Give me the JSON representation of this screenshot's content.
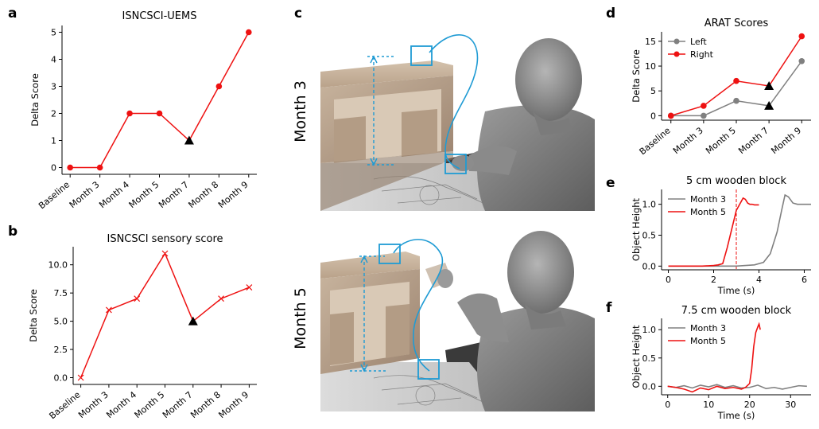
{
  "panels": [
    {
      "letter": "a"
    },
    {
      "letter": "b"
    },
    {
      "letter": "c"
    },
    {
      "letter": "d"
    },
    {
      "letter": "e"
    },
    {
      "letter": "f"
    }
  ],
  "colors": {
    "red": "#ee1111",
    "gray": "#808080",
    "black": "#000000",
    "blue": "#1f9bd4"
  },
  "photo_labels": {
    "top": "Month 3",
    "bottom": "Month 5"
  },
  "chart_data": [
    {
      "id": "a",
      "type": "line",
      "title": "ISNCSCI-UEMS",
      "xlabel": "",
      "ylabel": "Delta Score",
      "categories": [
        "Baseline",
        "Month 3",
        "Month 4",
        "Month 5",
        "Month 7",
        "Month 8",
        "Month 9"
      ],
      "yticks": [
        0,
        1,
        2,
        3,
        4,
        5
      ],
      "ylim": [
        -0.25,
        5.25
      ],
      "marker": "circle",
      "series": [
        {
          "values": [
            0,
            0,
            2,
            2,
            1,
            3,
            5
          ]
        }
      ],
      "highlight": {
        "index": 4,
        "marker": "triangle"
      }
    },
    {
      "id": "b",
      "type": "line",
      "title": "ISNCSCI sensory score",
      "xlabel": "",
      "ylabel": "Delta Score",
      "categories": [
        "Baseline",
        "Month 3",
        "Month 4",
        "Month 5",
        "Month 7",
        "Month 8",
        "Month 9"
      ],
      "yticks": [
        0.0,
        2.5,
        5.0,
        7.5,
        10.0
      ],
      "ytick_labels": [
        "0.0",
        "2.5",
        "5.0",
        "7.5",
        "10.0"
      ],
      "ylim": [
        -0.6,
        11.6
      ],
      "marker": "x",
      "series": [
        {
          "values": [
            0,
            6,
            7,
            11,
            5,
            7,
            8
          ]
        }
      ],
      "highlight": {
        "index": 4,
        "marker": "triangle"
      }
    },
    {
      "id": "d",
      "type": "line",
      "title": "ARAT Scores",
      "xlabel": "",
      "ylabel": "Delta Score",
      "categories": [
        "Baseline",
        "Month 3",
        "Month 5",
        "Month 7",
        "Month 9"
      ],
      "yticks": [
        0,
        5,
        10,
        15
      ],
      "ylim": [
        -0.9,
        16.9
      ],
      "legend": "top-left",
      "series": [
        {
          "name": "Left",
          "color": "gray",
          "values": [
            0,
            0,
            3,
            2,
            11
          ]
        },
        {
          "name": "Right",
          "color": "red",
          "values": [
            0,
            2,
            7,
            6,
            16
          ]
        }
      ],
      "highlight": {
        "index": 3,
        "marker": "triangle"
      }
    },
    {
      "id": "e",
      "type": "line",
      "title": "5 cm wooden block",
      "xlabel": "Time (s)",
      "ylabel": "Object Height",
      "xlim": [
        -0.3,
        6.3
      ],
      "ylim": [
        -0.06,
        1.24
      ],
      "xticks": [
        0,
        2,
        4,
        6
      ],
      "yticks": [
        0.0,
        0.5,
        1.0
      ],
      "ytick_labels": [
        "0.0",
        "0.5",
        "1.0"
      ],
      "legend": "top-left",
      "vline": 3.0,
      "series": [
        {
          "name": "Month 3",
          "color": "gray",
          "x": [
            0,
            1,
            2,
            3,
            3.8,
            4.2,
            4.5,
            4.8,
            5.0,
            5.15,
            5.3,
            5.5,
            5.7,
            5.9,
            6.1,
            6.3
          ],
          "y": [
            0,
            0,
            0,
            0,
            0.02,
            0.06,
            0.2,
            0.55,
            0.9,
            1.15,
            1.12,
            1.02,
            1.0,
            1.0,
            1.0,
            1.0
          ]
        },
        {
          "name": "Month 5",
          "color": "red",
          "x": [
            0,
            0.5,
            1,
            1.5,
            2,
            2.2,
            2.4,
            2.6,
            2.8,
            3.0,
            3.15,
            3.3,
            3.4,
            3.5,
            3.6,
            3.7,
            3.8,
            4.0
          ],
          "y": [
            0,
            0,
            0,
            0,
            0.01,
            0.02,
            0.04,
            0.3,
            0.6,
            0.9,
            1.0,
            1.1,
            1.08,
            1.02,
            1.0,
            1.0,
            0.99,
            0.99
          ]
        }
      ]
    },
    {
      "id": "f",
      "type": "line",
      "title": "7.5 cm wooden block",
      "xlabel": "Time (s)",
      "ylabel": "Object Height",
      "xlim": [
        -1.5,
        35
      ],
      "ylim": [
        -0.15,
        1.2
      ],
      "xticks": [
        0,
        10,
        20,
        30
      ],
      "yticks": [
        0.0,
        0.5,
        1.0
      ],
      "ytick_labels": [
        "0.0",
        "0.5",
        "1.0"
      ],
      "legend": "top-left",
      "series": [
        {
          "name": "Month 3",
          "color": "gray",
          "x": [
            0,
            2,
            4,
            6,
            8,
            10,
            12,
            14,
            16,
            18,
            20,
            22,
            24,
            26,
            28,
            30,
            32,
            34
          ],
          "y": [
            0,
            -0.02,
            0.01,
            -0.03,
            0.02,
            -0.01,
            0.03,
            -0.02,
            0.01,
            -0.03,
            -0.02,
            0.02,
            -0.04,
            -0.02,
            -0.05,
            -0.02,
            0.01,
            0.0
          ]
        },
        {
          "name": "Month 5",
          "color": "red",
          "x": [
            0,
            2,
            4,
            6,
            8,
            10,
            12,
            14,
            16,
            18,
            19,
            20,
            20.5,
            21,
            21.5,
            22,
            22.3,
            22.6
          ],
          "y": [
            0,
            -0.02,
            -0.05,
            -0.1,
            -0.03,
            -0.06,
            0.0,
            -0.04,
            -0.02,
            -0.05,
            -0.02,
            0.05,
            0.3,
            0.7,
            0.95,
            1.05,
            1.1,
            1.0
          ]
        }
      ]
    }
  ]
}
